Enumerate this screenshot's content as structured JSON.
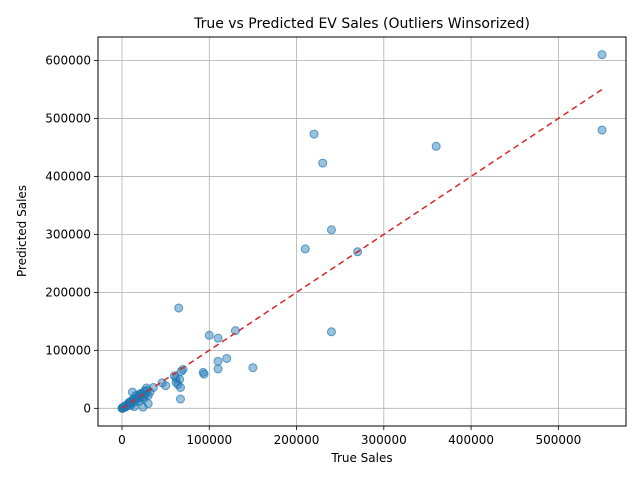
{
  "chart_data": {
    "type": "scatter",
    "title": "True vs Predicted EV Sales (Outliers Winsorized)",
    "xlabel": "True Sales",
    "ylabel": "Predicted Sales",
    "xlim": [
      -27500,
      577500
    ],
    "ylim": [
      -30500,
      640500
    ],
    "xticks": [
      0,
      100000,
      200000,
      300000,
      400000,
      500000
    ],
    "yticks": [
      0,
      100000,
      200000,
      300000,
      400000,
      500000,
      600000
    ],
    "xtick_labels": [
      "0",
      "100000",
      "200000",
      "300000",
      "400000",
      "500000"
    ],
    "ytick_labels": [
      "0",
      "100000",
      "200000",
      "300000",
      "400000",
      "500000",
      "600000"
    ],
    "grid": true,
    "point_color": "#1f77b4",
    "reference_line": {
      "x": [
        0,
        550000
      ],
      "y": [
        0,
        550000
      ],
      "color": "#d62728",
      "style": "dashed"
    },
    "points": [
      {
        "x": 550000,
        "y": 610000
      },
      {
        "x": 550000,
        "y": 480000
      },
      {
        "x": 360000,
        "y": 452000
      },
      {
        "x": 220000,
        "y": 473000
      },
      {
        "x": 230000,
        "y": 423000
      },
      {
        "x": 240000,
        "y": 308000
      },
      {
        "x": 210000,
        "y": 275000
      },
      {
        "x": 270000,
        "y": 270000
      },
      {
        "x": 240000,
        "y": 132000
      },
      {
        "x": 130000,
        "y": 134000
      },
      {
        "x": 100000,
        "y": 126000
      },
      {
        "x": 110000,
        "y": 121000
      },
      {
        "x": 65000,
        "y": 173000
      },
      {
        "x": 120000,
        "y": 86000
      },
      {
        "x": 110000,
        "y": 81000
      },
      {
        "x": 110000,
        "y": 68000
      },
      {
        "x": 150000,
        "y": 70000
      },
      {
        "x": 93000,
        "y": 62000
      },
      {
        "x": 94000,
        "y": 59000
      },
      {
        "x": 70000,
        "y": 67000
      },
      {
        "x": 68000,
        "y": 64000
      },
      {
        "x": 60000,
        "y": 56000
      },
      {
        "x": 62000,
        "y": 52000
      },
      {
        "x": 66000,
        "y": 50000
      },
      {
        "x": 62000,
        "y": 45000
      },
      {
        "x": 64000,
        "y": 41000
      },
      {
        "x": 67000,
        "y": 36000
      },
      {
        "x": 46000,
        "y": 44000
      },
      {
        "x": 50000,
        "y": 39000
      },
      {
        "x": 36000,
        "y": 36000
      },
      {
        "x": 28000,
        "y": 35000
      },
      {
        "x": 32000,
        "y": 28000
      },
      {
        "x": 26000,
        "y": 30000
      },
      {
        "x": 22000,
        "y": 26000
      },
      {
        "x": 20000,
        "y": 24000
      },
      {
        "x": 30000,
        "y": 22000
      },
      {
        "x": 24000,
        "y": 20000
      },
      {
        "x": 18000,
        "y": 19000
      },
      {
        "x": 16000,
        "y": 22000
      },
      {
        "x": 12000,
        "y": 28000
      },
      {
        "x": 14000,
        "y": 17000
      },
      {
        "x": 12000,
        "y": 14000
      },
      {
        "x": 10000,
        "y": 12000
      },
      {
        "x": 8000,
        "y": 10000
      },
      {
        "x": 15000,
        "y": 11000
      },
      {
        "x": 20000,
        "y": 12000
      },
      {
        "x": 25000,
        "y": 17000
      },
      {
        "x": 30000,
        "y": 8000
      },
      {
        "x": 24000,
        "y": 2000
      },
      {
        "x": 14000,
        "y": 3000
      },
      {
        "x": 10000,
        "y": 5000
      },
      {
        "x": 6000,
        "y": 6000
      },
      {
        "x": 5000,
        "y": 3000
      },
      {
        "x": 3000,
        "y": 2000
      },
      {
        "x": 2000,
        "y": 1000
      },
      {
        "x": 1000,
        "y": 500
      },
      {
        "x": 500,
        "y": 200
      },
      {
        "x": 0,
        "y": 0
      },
      {
        "x": 300,
        "y": 800
      },
      {
        "x": 1500,
        "y": 1800
      },
      {
        "x": 4000,
        "y": 4500
      },
      {
        "x": 7000,
        "y": 8000
      },
      {
        "x": 9000,
        "y": 7000
      },
      {
        "x": 11000,
        "y": 9000
      },
      {
        "x": 13000,
        "y": 15000
      },
      {
        "x": 17000,
        "y": 16000
      },
      {
        "x": 19000,
        "y": 21000
      },
      {
        "x": 21000,
        "y": 18000
      },
      {
        "x": 23000,
        "y": 25000
      },
      {
        "x": 27000,
        "y": 24000
      },
      {
        "x": 29000,
        "y": 31000
      },
      {
        "x": 67000,
        "y": 16000
      }
    ]
  }
}
